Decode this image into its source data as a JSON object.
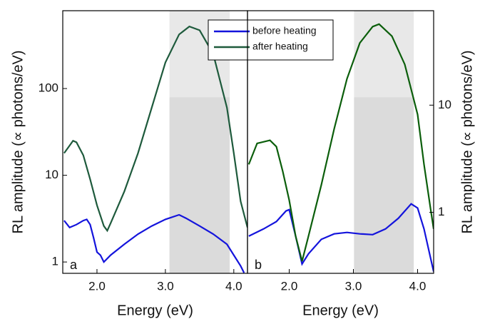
{
  "chart_data": [
    {
      "type": "line",
      "log_y": true,
      "y_axis_side": "left",
      "panel_label": "a",
      "x_label": "Energy (eV)",
      "y_label": "RL amplitude (∝ photons/eV)",
      "xlim": [
        1.5,
        4.2
      ],
      "xticks": [
        {
          "value": 2,
          "label": "2.0"
        },
        {
          "value": 3,
          "label": "3.0"
        },
        {
          "value": 4,
          "label": "4.0"
        }
      ],
      "ylim": [
        0.74,
        790
      ],
      "yticks": [
        1,
        10,
        100
      ],
      "shade": [
        3.06,
        3.94
      ],
      "legend": "top",
      "series": [
        {
          "name": "before heating",
          "color": "#1414dc",
          "x": [
            1.52,
            1.6,
            1.7,
            1.8,
            1.85,
            1.9,
            1.95,
            2.0,
            2.05,
            2.1,
            2.2,
            2.4,
            2.6,
            2.8,
            3.0,
            3.2,
            3.3,
            3.5,
            3.7,
            3.9,
            4.0,
            4.1,
            4.15
          ],
          "values": [
            3.0,
            2.5,
            2.7,
            3.0,
            3.1,
            2.7,
            1.9,
            1.3,
            1.2,
            1.0,
            1.2,
            1.6,
            2.1,
            2.6,
            3.1,
            3.5,
            3.2,
            2.6,
            2.1,
            1.6,
            1.2,
            0.9,
            0.75
          ]
        },
        {
          "name": "after heating",
          "color": "#1e5a3c",
          "x": [
            1.52,
            1.6,
            1.65,
            1.7,
            1.8,
            1.9,
            2.0,
            2.1,
            2.15,
            2.2,
            2.4,
            2.6,
            2.8,
            3.0,
            3.2,
            3.35,
            3.5,
            3.7,
            3.9,
            4.0,
            4.1,
            4.2
          ],
          "values": [
            18,
            22,
            25,
            24,
            17,
            9,
            4.5,
            2.6,
            2.3,
            2.8,
            6.5,
            18,
            60,
            200,
            420,
            520,
            470,
            250,
            60,
            18,
            5,
            2.5
          ]
        }
      ]
    },
    {
      "type": "line",
      "log_y": true,
      "y_axis_side": "right",
      "panel_label": "b",
      "x_label": "Energy (eV)",
      "y_label": "RL amplitude (∝ photons/eV)",
      "xlim": [
        1.35,
        4.25
      ],
      "xticks": [
        {
          "value": 2,
          "label": "2.0"
        },
        {
          "value": 3,
          "label": "3.0"
        },
        {
          "value": 4,
          "label": "4.0"
        }
      ],
      "ylim": [
        0.27,
        76
      ],
      "yticks": [
        1,
        10
      ],
      "shade": [
        3.01,
        3.94
      ],
      "series": [
        {
          "color": "#1414dc",
          "x": [
            1.37,
            1.6,
            1.8,
            1.95,
            2.0,
            2.1,
            2.2,
            2.3,
            2.5,
            2.7,
            2.9,
            3.1,
            3.3,
            3.5,
            3.7,
            3.9,
            4.0,
            4.1,
            4.2,
            4.25
          ],
          "values": [
            0.6,
            0.7,
            0.82,
            1.03,
            1.06,
            0.6,
            0.33,
            0.41,
            0.56,
            0.63,
            0.65,
            0.63,
            0.62,
            0.7,
            0.88,
            1.2,
            1.1,
            0.7,
            0.38,
            0.28
          ]
        },
        {
          "color": "#0b5e0b",
          "x": [
            1.37,
            1.5,
            1.7,
            1.8,
            1.9,
            2.0,
            2.1,
            2.2,
            2.3,
            2.5,
            2.7,
            2.9,
            3.1,
            3.3,
            3.4,
            3.6,
            3.8,
            4.0,
            4.1,
            4.2,
            4.25
          ],
          "values": [
            2.8,
            4.4,
            4.7,
            4.1,
            2.4,
            1.3,
            0.6,
            0.35,
            0.6,
            1.8,
            6,
            17.6,
            38,
            54,
            57,
            44,
            24,
            8.2,
            2.8,
            1.1,
            0.7
          ]
        }
      ]
    }
  ]
}
